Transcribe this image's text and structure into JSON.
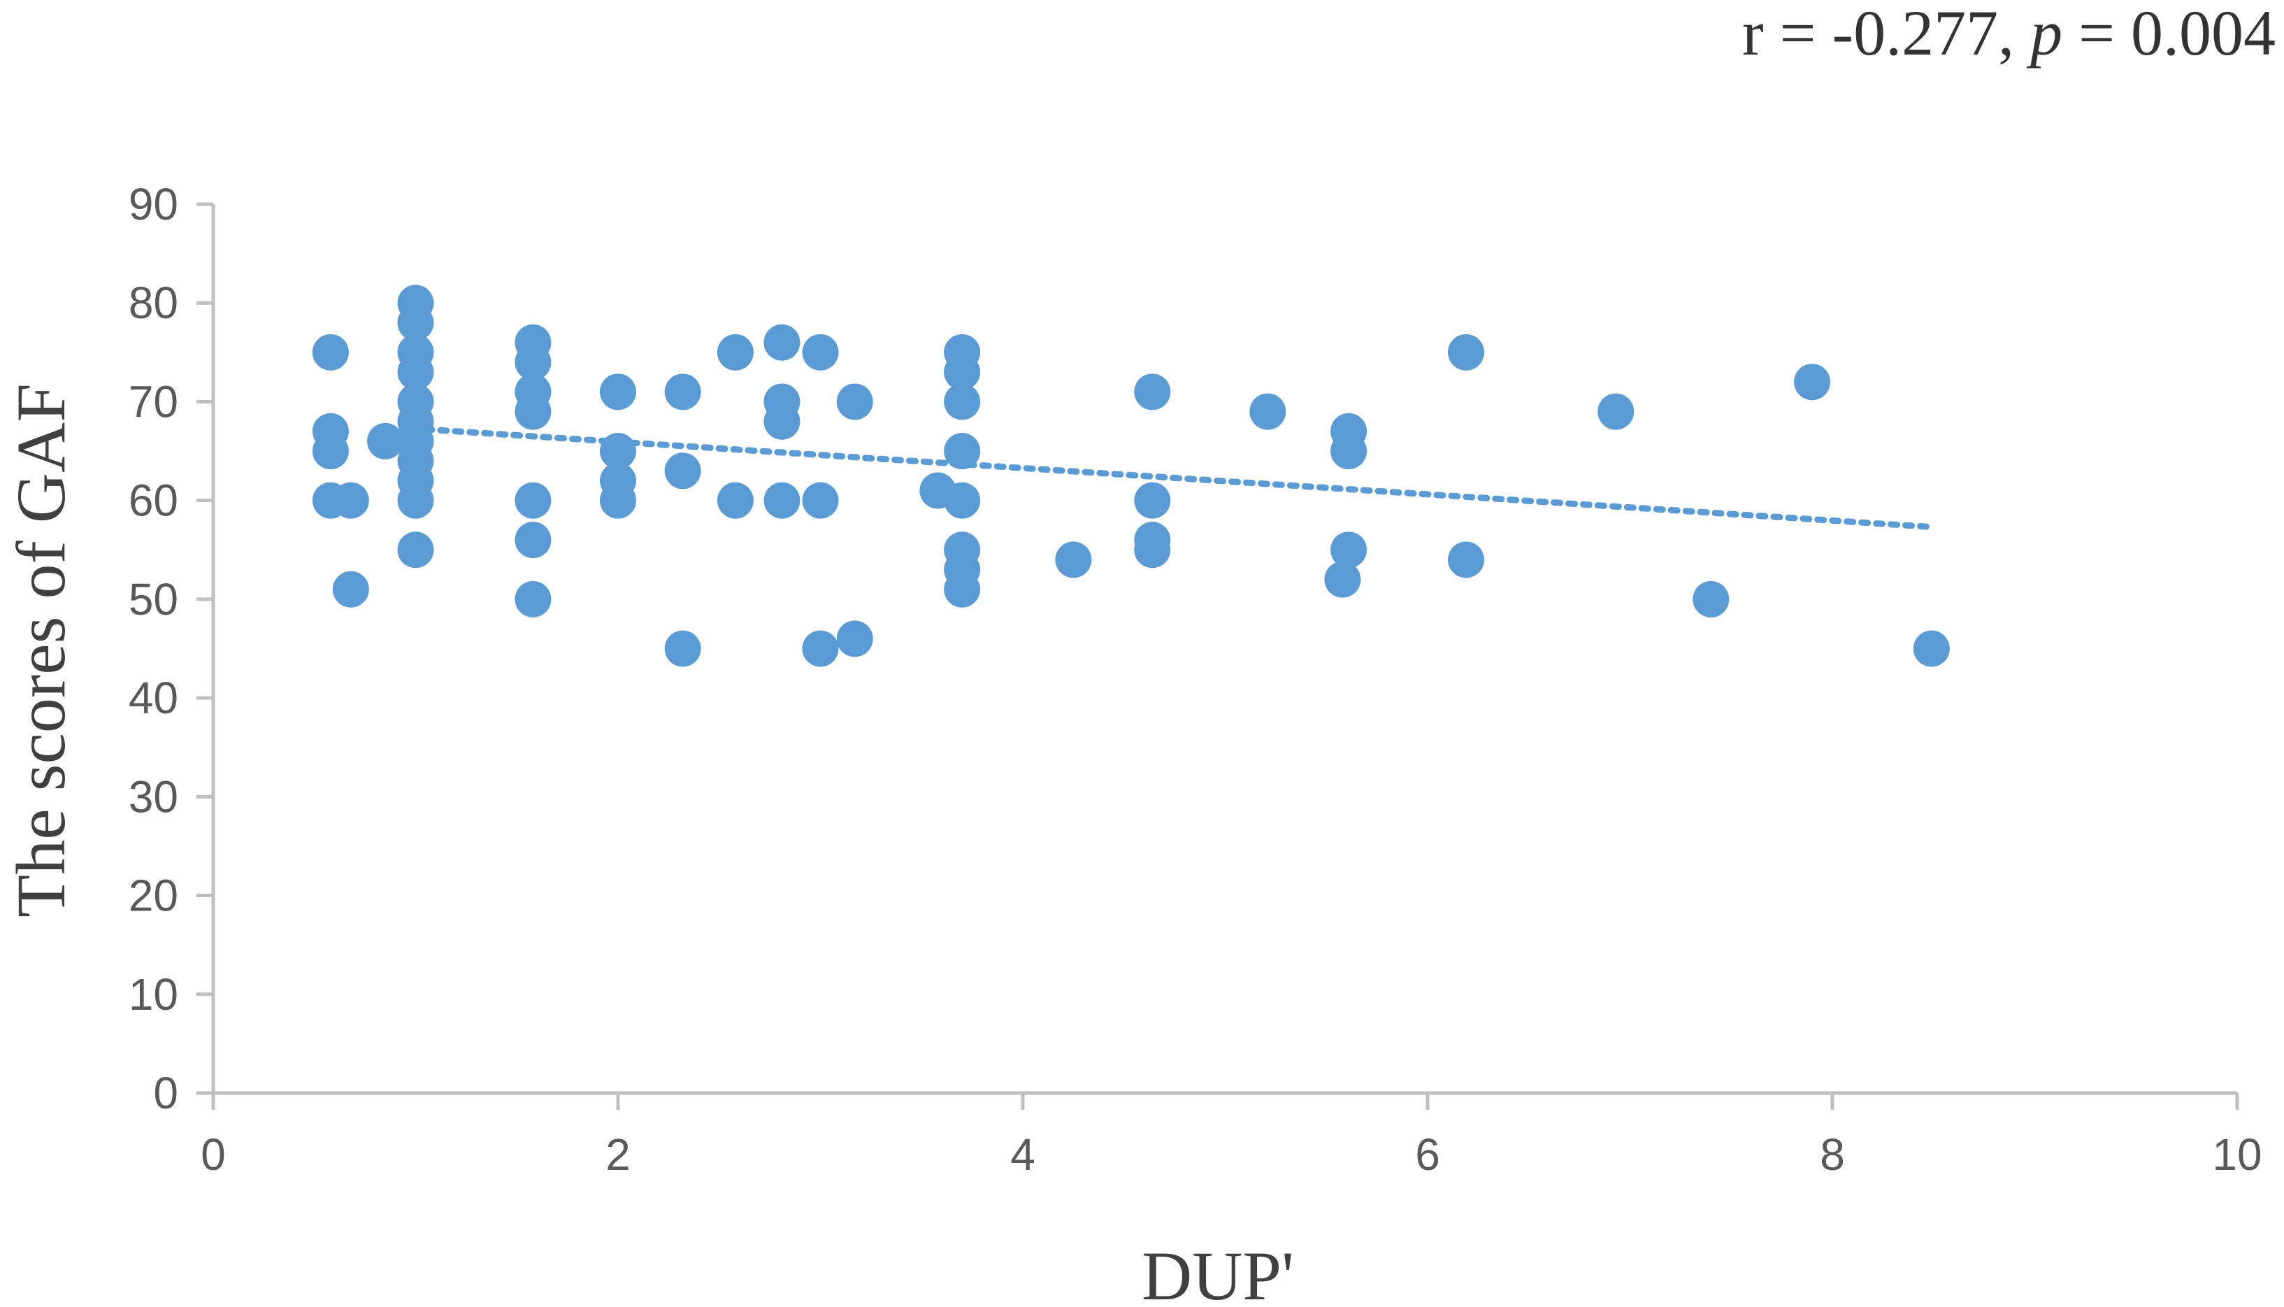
{
  "chart_data": {
    "type": "scatter",
    "annotation": {
      "prefix": "r = -0.277, ",
      "p_symbol": "p",
      "suffix": " = 0.004"
    },
    "xlabel": "DUP'",
    "ylabel": "The scores of GAF",
    "xlim": [
      0,
      10
    ],
    "ylim": [
      0,
      90
    ],
    "x_ticks": [
      0,
      2,
      4,
      6,
      8,
      10
    ],
    "y_ticks": [
      0,
      10,
      20,
      30,
      40,
      50,
      60,
      70,
      80,
      90
    ],
    "grid": false,
    "legend": "none",
    "marker_color": "#5b9bd5",
    "trendline": {
      "style": "dotted",
      "x": [
        1.05,
        8.5
      ],
      "y": [
        67.2,
        57.3
      ]
    },
    "points": [
      [
        0.58,
        75
      ],
      [
        0.58,
        67
      ],
      [
        0.58,
        65
      ],
      [
        0.58,
        60
      ],
      [
        0.68,
        60
      ],
      [
        0.68,
        51
      ],
      [
        0.85,
        66
      ],
      [
        1.0,
        80
      ],
      [
        1.0,
        78
      ],
      [
        1.0,
        75
      ],
      [
        1.0,
        73
      ],
      [
        1.0,
        70
      ],
      [
        1.0,
        68
      ],
      [
        1.0,
        66
      ],
      [
        1.0,
        64
      ],
      [
        1.0,
        62
      ],
      [
        1.0,
        60
      ],
      [
        1.0,
        55
      ],
      [
        1.58,
        76
      ],
      [
        1.58,
        74
      ],
      [
        1.58,
        71
      ],
      [
        1.58,
        69
      ],
      [
        1.58,
        60
      ],
      [
        1.58,
        56
      ],
      [
        1.58,
        50
      ],
      [
        2.0,
        71
      ],
      [
        2.0,
        65
      ],
      [
        2.0,
        62
      ],
      [
        2.0,
        60
      ],
      [
        2.32,
        71
      ],
      [
        2.32,
        63
      ],
      [
        2.32,
        45
      ],
      [
        2.58,
        75
      ],
      [
        2.58,
        60
      ],
      [
        2.81,
        76
      ],
      [
        2.81,
        70
      ],
      [
        2.81,
        68
      ],
      [
        2.81,
        60
      ],
      [
        3.0,
        75
      ],
      [
        3.0,
        60
      ],
      [
        3.0,
        45
      ],
      [
        3.17,
        70
      ],
      [
        3.17,
        46
      ],
      [
        3.58,
        61
      ],
      [
        3.7,
        75
      ],
      [
        3.7,
        73
      ],
      [
        3.7,
        70
      ],
      [
        3.7,
        65
      ],
      [
        3.7,
        60
      ],
      [
        3.7,
        55
      ],
      [
        3.7,
        53
      ],
      [
        3.7,
        51
      ],
      [
        4.25,
        54
      ],
      [
        4.64,
        71
      ],
      [
        4.64,
        60
      ],
      [
        4.64,
        56
      ],
      [
        4.64,
        55
      ],
      [
        5.21,
        69
      ],
      [
        5.58,
        52
      ],
      [
        5.61,
        67
      ],
      [
        5.61,
        65
      ],
      [
        5.61,
        55
      ],
      [
        6.19,
        75
      ],
      [
        6.19,
        54
      ],
      [
        6.93,
        69
      ],
      [
        7.4,
        50
      ],
      [
        7.9,
        72
      ],
      [
        8.49,
        45
      ]
    ]
  }
}
